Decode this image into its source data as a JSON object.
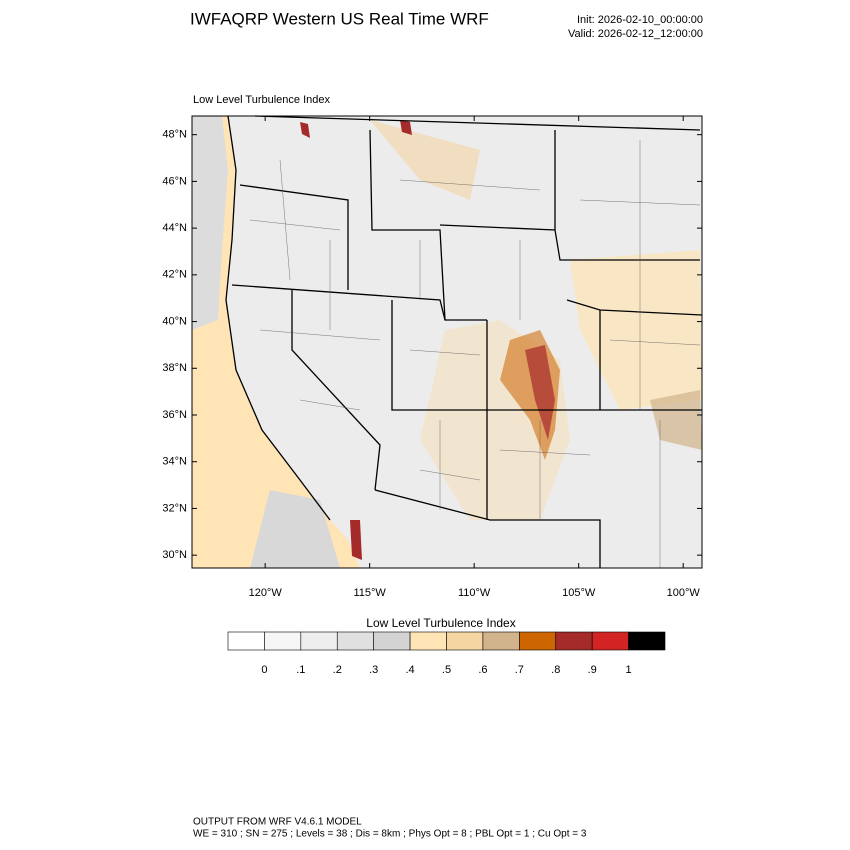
{
  "header": {
    "title": "IWFAQRP Western US Real Time WRF",
    "init": "Init: 2026-02-10_00:00:00",
    "valid": "Valid: 2026-02-12_12:00:00"
  },
  "map": {
    "title": "Low Level Turbulence Index",
    "latlim": [
      29.45,
      48.8
    ],
    "lonlim": [
      -123.5,
      -99.1
    ],
    "lat_ticks": [
      {
        "value": 30,
        "label": "30°N"
      },
      {
        "value": 32,
        "label": "32°N"
      },
      {
        "value": 34,
        "label": "34°N"
      },
      {
        "value": 36,
        "label": "36°N"
      },
      {
        "value": 38,
        "label": "38°N"
      },
      {
        "value": 40,
        "label": "40°N"
      },
      {
        "value": 42,
        "label": "42°N"
      },
      {
        "value": 44,
        "label": "44°N"
      },
      {
        "value": 46,
        "label": "46°N"
      },
      {
        "value": 48,
        "label": "48°N"
      }
    ],
    "lon_ticks": [
      {
        "value": -120,
        "label": "120°W"
      },
      {
        "value": -115,
        "label": "115°W"
      },
      {
        "value": -110,
        "label": "110°W"
      },
      {
        "value": -105,
        "label": "105°W"
      },
      {
        "value": -100,
        "label": "100°W"
      }
    ]
  },
  "colorbar": {
    "title": "Low Level Turbulence Index",
    "colors": [
      "#ffffff",
      "#f6f6f6",
      "#eeeeee",
      "#e0e0e0",
      "#d3d3d3",
      "#ffe4b5",
      "#f5d6a3",
      "#d2b48c",
      "#cd6600",
      "#a52a2a",
      "#d32424",
      "#000000"
    ],
    "levels": [
      0,
      {
        "value": 0.1,
        "label": ".1"
      },
      {
        "value": 0.2,
        "label": ".2"
      },
      {
        "value": 0.3,
        "label": ".3"
      },
      {
        "value": 0.4,
        "label": ".4"
      },
      {
        "value": 0.5,
        "label": ".5"
      },
      {
        "value": 0.6,
        "label": ".6"
      },
      {
        "value": 0.7,
        "label": ".7"
      },
      {
        "value": 0.8,
        "label": ".8"
      },
      {
        "value": 0.9,
        "label": ".9"
      },
      1
    ]
  },
  "footer": {
    "line1": "OUTPUT FROM WRF V4.6.1 MODEL",
    "line2": "WE = 310 ; SN = 275 ; Levels = 38 ; Dis = 8km ; Phys Opt = 8 ; PBL Opt = 1 ; Cu Opt = 3"
  }
}
